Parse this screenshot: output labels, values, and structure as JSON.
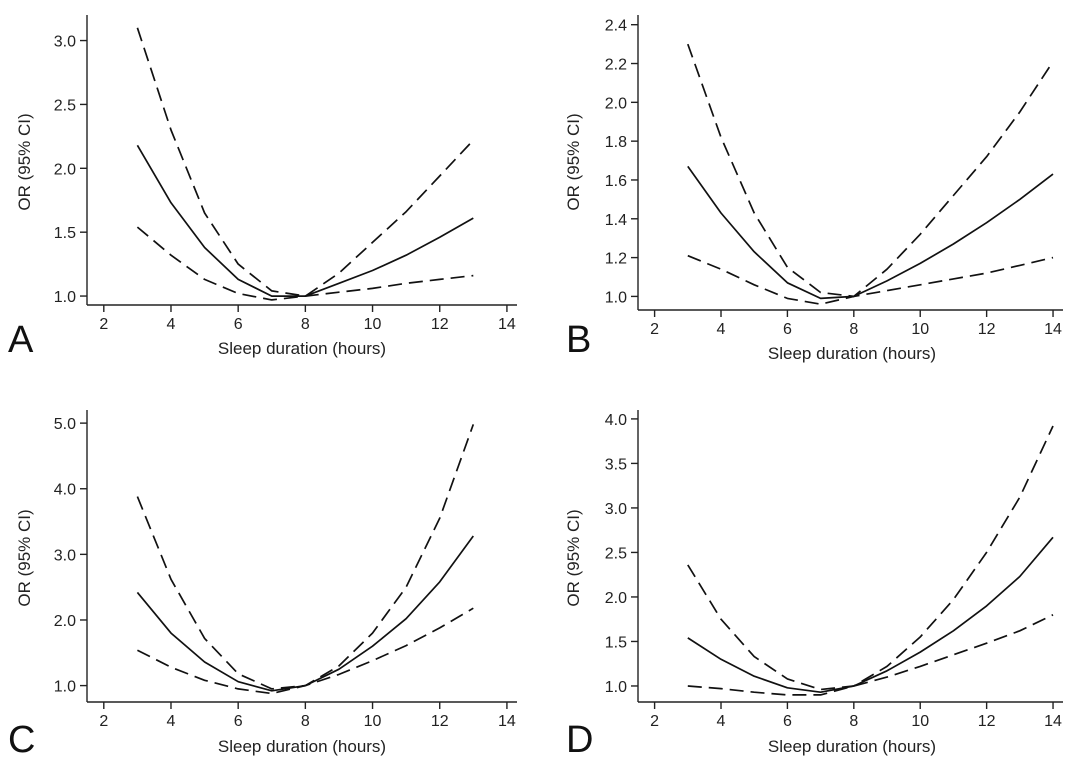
{
  "chart_data": [
    {
      "type": "line",
      "panel": "A",
      "xlabel": "Sleep duration (hours)",
      "ylabel": "OR (95% CI)",
      "xlim": [
        1.5,
        14.3
      ],
      "ylim": [
        0.93,
        3.2
      ],
      "xticks": [
        2,
        4,
        6,
        8,
        10,
        12,
        14
      ],
      "yticks": [
        1.0,
        1.5,
        2.0,
        2.5,
        3.0
      ],
      "ytick_labels": [
        "1.0",
        "1.5",
        "2.0",
        "2.5",
        "3.0"
      ],
      "x": [
        3,
        4,
        5,
        6,
        7,
        8,
        9,
        10,
        11,
        12,
        13
      ],
      "series": [
        {
          "style": "dashed",
          "values": [
            3.1,
            2.3,
            1.65,
            1.25,
            1.04,
            1.0,
            1.18,
            1.42,
            1.66,
            1.94,
            2.22
          ]
        },
        {
          "style": "solid",
          "values": [
            2.18,
            1.73,
            1.38,
            1.13,
            1.0,
            1.0,
            1.1,
            1.2,
            1.32,
            1.46,
            1.61
          ]
        },
        {
          "style": "dashed",
          "values": [
            1.54,
            1.32,
            1.13,
            1.02,
            0.97,
            1.0,
            1.03,
            1.06,
            1.1,
            1.13,
            1.16
          ]
        }
      ]
    },
    {
      "type": "line",
      "panel": "B",
      "xlabel": "Sleep duration (hours)",
      "ylabel": "OR (95% CI)",
      "xlim": [
        1.5,
        14.3
      ],
      "ylim": [
        0.93,
        2.45
      ],
      "xticks": [
        2,
        4,
        6,
        8,
        10,
        12,
        14
      ],
      "yticks": [
        1.0,
        1.2,
        1.4,
        1.6,
        1.8,
        2.0,
        2.2,
        2.4
      ],
      "ytick_labels": [
        "1.0",
        "1.2",
        "1.4",
        "1.6",
        "1.8",
        "2.0",
        "2.2",
        "2.4"
      ],
      "x": [
        3,
        4,
        5,
        6,
        7,
        8,
        9,
        10,
        11,
        12,
        13,
        14
      ],
      "series": [
        {
          "style": "dashed",
          "values": [
            2.3,
            1.82,
            1.43,
            1.15,
            1.02,
            1.0,
            1.14,
            1.32,
            1.52,
            1.72,
            1.95,
            2.21
          ]
        },
        {
          "style": "solid",
          "values": [
            1.67,
            1.43,
            1.23,
            1.07,
            0.99,
            1.0,
            1.08,
            1.17,
            1.27,
            1.38,
            1.5,
            1.63
          ]
        },
        {
          "style": "dashed",
          "values": [
            1.21,
            1.14,
            1.06,
            0.99,
            0.96,
            1.0,
            1.03,
            1.06,
            1.09,
            1.12,
            1.16,
            1.2
          ]
        }
      ]
    },
    {
      "type": "line",
      "panel": "C",
      "xlabel": "Sleep duration (hours)",
      "ylabel": "OR (95% CI)",
      "xlim": [
        1.5,
        14.3
      ],
      "ylim": [
        0.75,
        5.2
      ],
      "xticks": [
        2,
        4,
        6,
        8,
        10,
        12,
        14
      ],
      "yticks": [
        1.0,
        2.0,
        3.0,
        4.0,
        5.0
      ],
      "ytick_labels": [
        "1.0",
        "2.0",
        "3.0",
        "4.0",
        "5.0"
      ],
      "x": [
        3,
        4,
        5,
        6,
        7,
        8,
        9,
        10,
        11,
        12,
        13
      ],
      "series": [
        {
          "style": "dashed",
          "values": [
            3.88,
            2.62,
            1.72,
            1.18,
            0.95,
            1.0,
            1.3,
            1.8,
            2.5,
            3.55,
            4.98
          ]
        },
        {
          "style": "solid",
          "values": [
            2.42,
            1.8,
            1.36,
            1.06,
            0.92,
            1.0,
            1.25,
            1.6,
            2.02,
            2.58,
            3.28
          ]
        },
        {
          "style": "dashed",
          "values": [
            1.54,
            1.28,
            1.08,
            0.95,
            0.88,
            1.0,
            1.17,
            1.38,
            1.61,
            1.88,
            2.18
          ]
        }
      ]
    },
    {
      "type": "line",
      "panel": "D",
      "xlabel": "Sleep duration (hours)",
      "ylabel": "OR (95% CI)",
      "xlim": [
        1.5,
        14.3
      ],
      "ylim": [
        0.82,
        4.1
      ],
      "xticks": [
        2,
        4,
        6,
        8,
        10,
        12,
        14
      ],
      "yticks": [
        1.0,
        1.5,
        2.0,
        2.5,
        3.0,
        3.5,
        4.0
      ],
      "ytick_labels": [
        "1.0",
        "1.5",
        "2.0",
        "2.5",
        "3.0",
        "3.5",
        "4.0"
      ],
      "x": [
        3,
        4,
        5,
        6,
        7,
        8,
        9,
        10,
        11,
        12,
        13,
        14
      ],
      "series": [
        {
          "style": "dashed",
          "values": [
            2.36,
            1.75,
            1.33,
            1.08,
            0.96,
            1.0,
            1.22,
            1.55,
            1.97,
            2.5,
            3.12,
            3.92
          ]
        },
        {
          "style": "solid",
          "values": [
            1.54,
            1.3,
            1.11,
            0.98,
            0.93,
            1.0,
            1.17,
            1.38,
            1.62,
            1.9,
            2.23,
            2.67
          ]
        },
        {
          "style": "dashed",
          "values": [
            1.0,
            0.97,
            0.93,
            0.9,
            0.9,
            1.0,
            1.1,
            1.22,
            1.35,
            1.48,
            1.62,
            1.8
          ]
        }
      ]
    }
  ]
}
